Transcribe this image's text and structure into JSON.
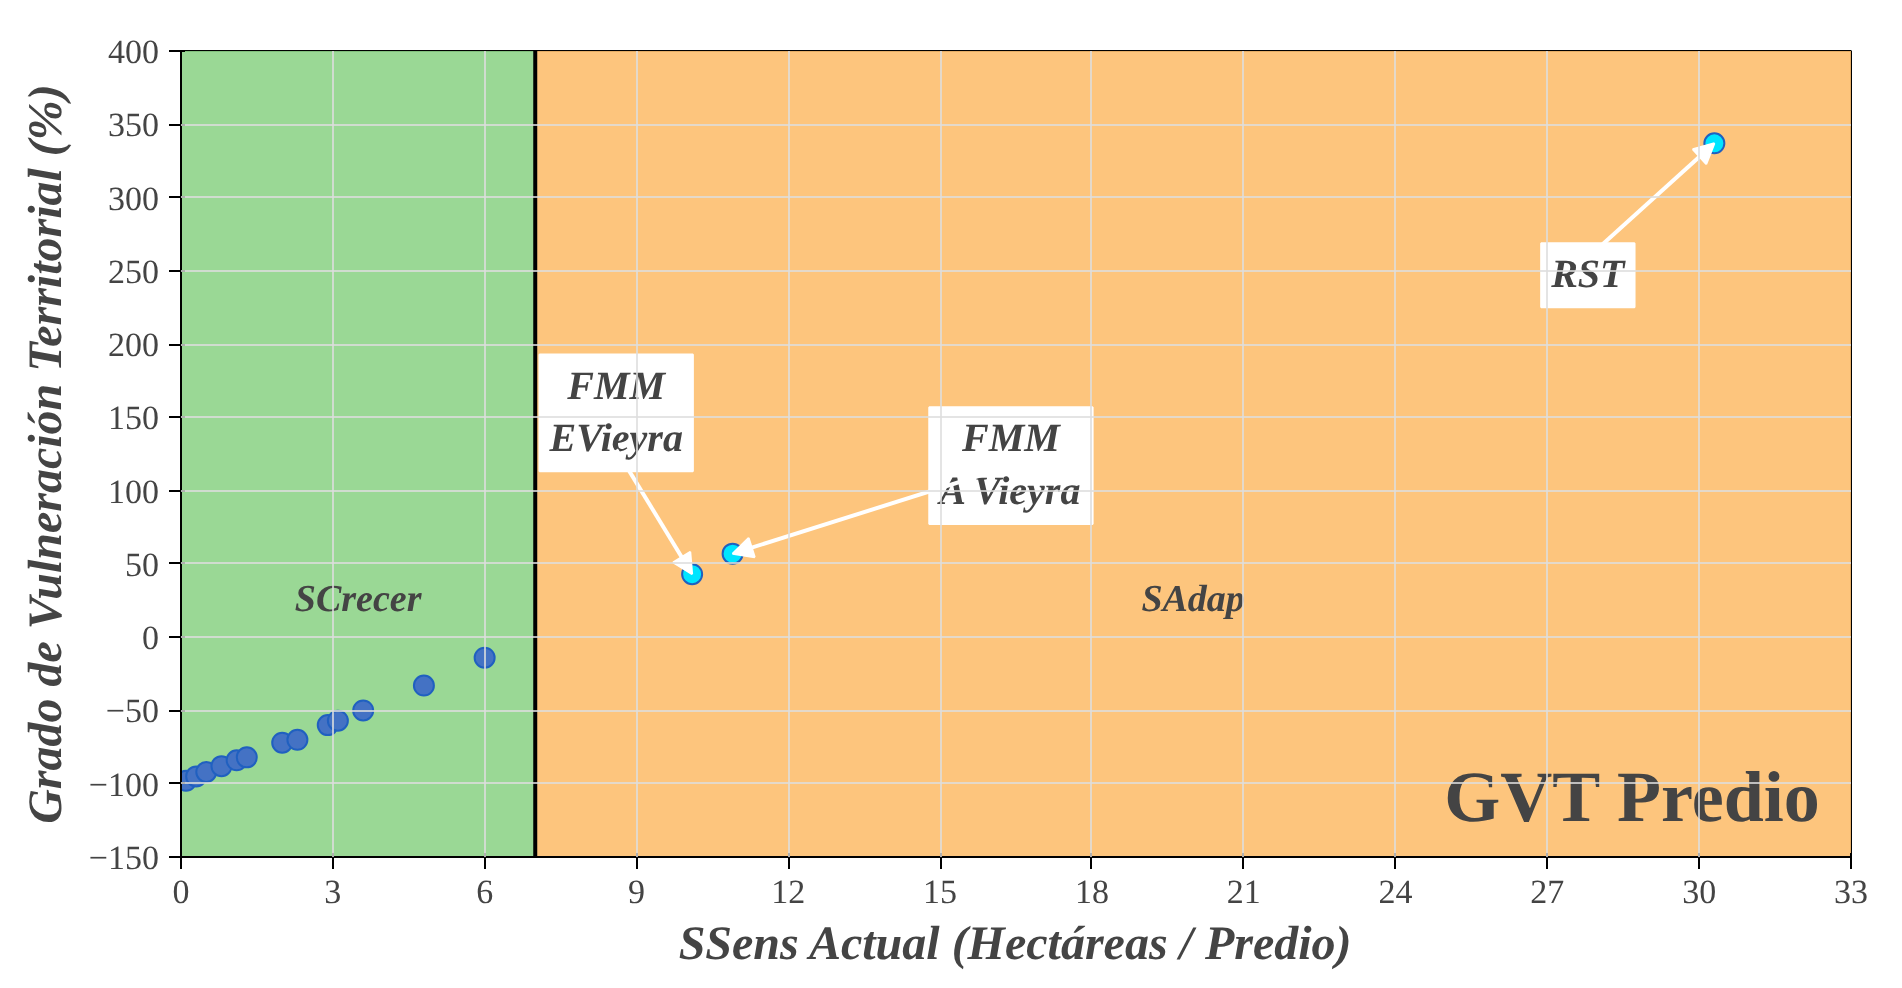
{
  "chart_data": {
    "type": "scatter",
    "xlabel": "SSens Actual (Hectáreas / Predio)",
    "ylabel": "Grado de Vulneración Territorial (%)",
    "series": [
      {
        "color": "#4472c4",
        "x": [
          0.1,
          0.3,
          0.5,
          0.8,
          1.1,
          1.3,
          2.0,
          2.3,
          2.9,
          3.1,
          3.6,
          4.8,
          6.0
        ],
        "values": [
          -98,
          -95,
          -92,
          -88,
          -84,
          -82,
          -72,
          -70,
          -60,
          -57,
          -50,
          -33,
          -14
        ]
      },
      {
        "color": "#00e5ff",
        "x": [
          10.1,
          10.9,
          30.3
        ],
        "values": [
          43,
          57,
          337
        ]
      }
    ],
    "annotations": [
      {
        "text": "FMM\nEVieyra",
        "x": 10.1,
        "y": 43
      },
      {
        "text": "FMM\nA Vieyra",
        "x": 10.9,
        "y": 57
      },
      {
        "text": "RST",
        "x": 30.3,
        "y": 337
      },
      "GVT Predio"
    ],
    "bands": [
      {
        "axis": "x",
        "from": 0,
        "to": 7,
        "label": "SCrecer",
        "color": "#8fd48a"
      },
      {
        "axis": "x",
        "from": 7,
        "to": 33,
        "label": "SAdap",
        "color": "#fdbf6f"
      }
    ],
    "ref_lines": [
      {
        "axis": "x",
        "value": 7,
        "label": null,
        "color": "#000000"
      }
    ],
    "xlim": [
      0,
      33
    ],
    "ylim": [
      -150,
      400
    ],
    "xticks": [
      0,
      3,
      6,
      9,
      12,
      15,
      18,
      21,
      24,
      27,
      30,
      33
    ],
    "yticks": [
      -150,
      -100,
      -50,
      0,
      50,
      100,
      150,
      200,
      250,
      300,
      350,
      400
    ],
    "grid": true,
    "marker": "circle"
  }
}
